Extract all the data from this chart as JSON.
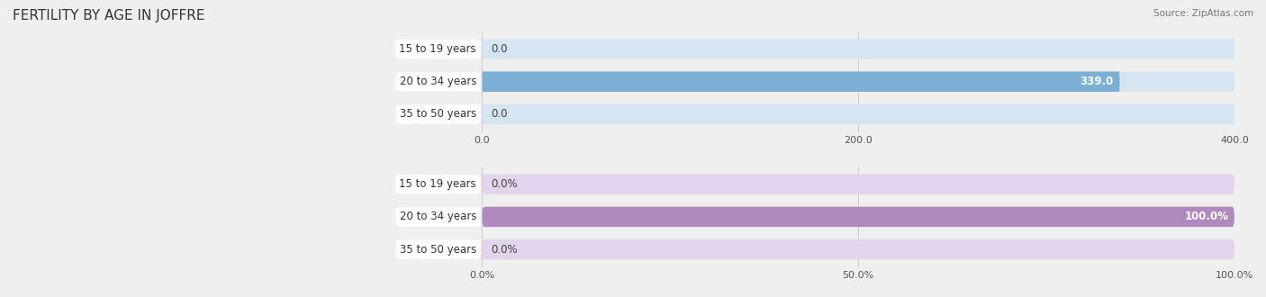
{
  "title": "FERTILITY BY AGE IN JOFFRE",
  "source": "Source: ZipAtlas.com",
  "top_chart": {
    "categories": [
      "15 to 19 years",
      "20 to 34 years",
      "35 to 50 years"
    ],
    "values": [
      0.0,
      339.0,
      0.0
    ],
    "xlim": [
      0,
      400.0
    ],
    "xticks": [
      0.0,
      200.0,
      400.0
    ],
    "bar_color": "#7bafd4",
    "bar_bg_color": "#d5e5f2",
    "label_color_inside": "#ffffff",
    "label_color_outside": "#555555"
  },
  "bottom_chart": {
    "categories": [
      "15 to 19 years",
      "20 to 34 years",
      "35 to 50 years"
    ],
    "values": [
      0.0,
      100.0,
      0.0
    ],
    "xlim": [
      0,
      100.0
    ],
    "xticks": [
      0.0,
      50.0,
      100.0
    ],
    "bar_color": "#b08abf",
    "bar_bg_color": "#e2d4ec",
    "label_color_inside": "#ffffff",
    "label_color_outside": "#555555"
  },
  "background_color": "#efefef",
  "title_fontsize": 11,
  "cat_fontsize": 8.5,
  "val_fontsize": 8.5,
  "tick_fontsize": 8,
  "source_fontsize": 7.5
}
